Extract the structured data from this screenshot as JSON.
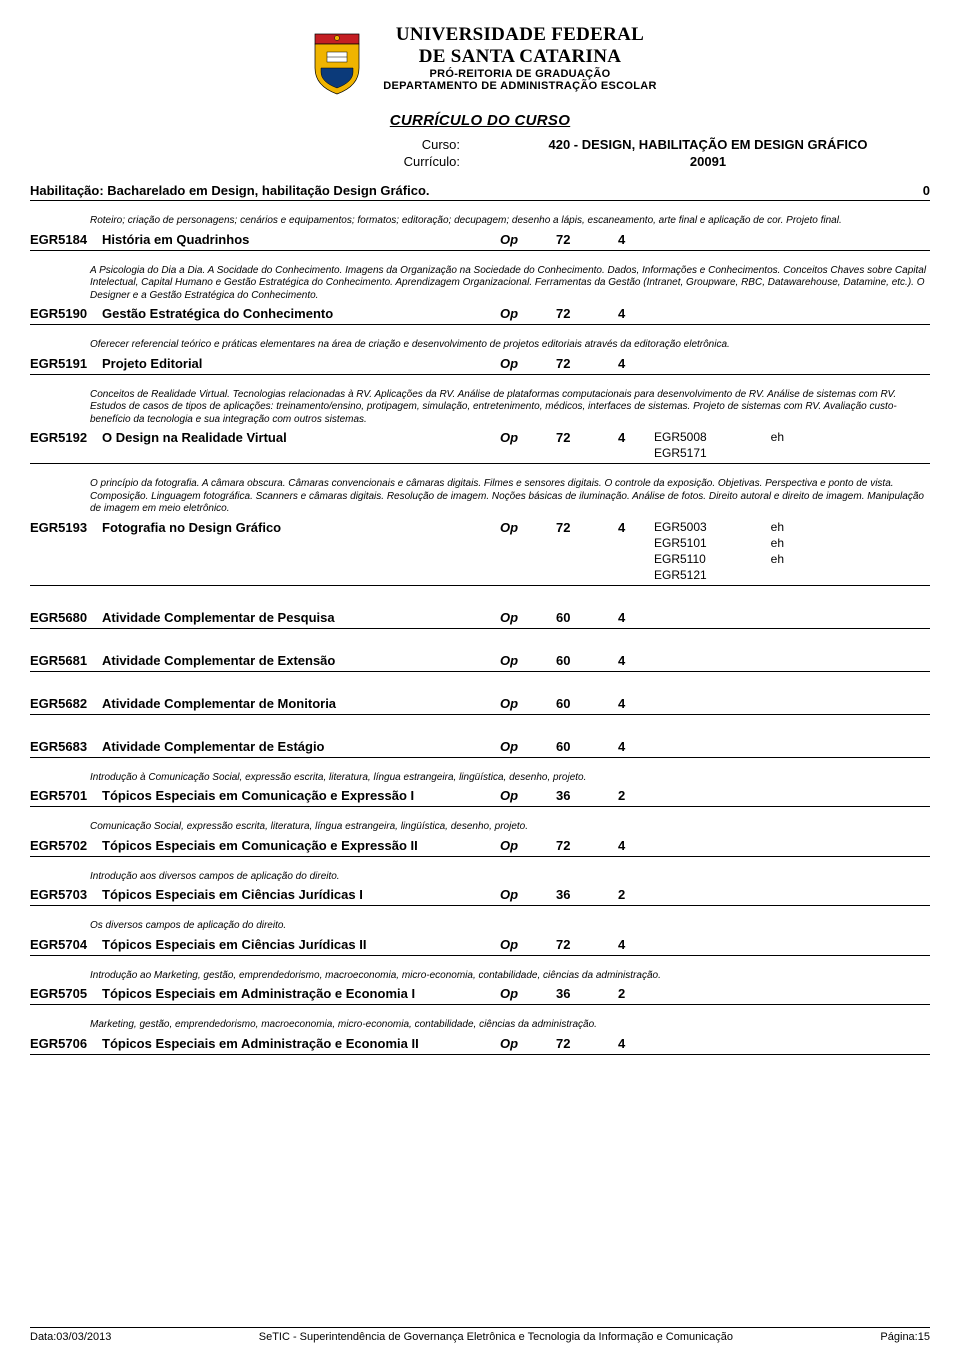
{
  "header": {
    "university_line1": "UNIVERSIDADE FEDERAL",
    "university_line2": "DE SANTA CATARINA",
    "sub1": "PRÓ-REITORIA DE GRADUAÇÃO",
    "sub2": "DEPARTAMENTO DE ADMINISTRAÇÃO ESCOLAR",
    "doc_title": "CURRÍCULO  DO  CURSO",
    "course_label": "Curso:",
    "course_value": "420 -  DESIGN, HABILITAÇÃO EM DESIGN GRÁFICO",
    "curriculum_label": "Currículo:",
    "curriculum_value": "20091",
    "hab_label": "Habilitação: Bacharelado em Design, habilitação Design Gráfico.",
    "hab_right": "0"
  },
  "entries": [
    {
      "desc": "Roteiro; criação de personagens; cenários e equipamentos; formatos; editoração; decupagem; desenho a lápis, escaneamento, arte final e aplicação de cor. Projeto final.",
      "code": "EGR5184",
      "name": "História em Quadrinhos",
      "type": "Op",
      "hours": "72",
      "cred": "4",
      "prereq": []
    },
    {
      "desc": "A Psicologia do Dia a Dia. A Socidade do Conhecimento. Imagens da Organização na Sociedade do Conhecimento. Dados, Informações e Conhecimentos. Conceitos Chaves sobre Capital Intelectual, Capital Humano e Gestão Estratégica do Conhecimento. Aprendizagem Organizacional. Ferramentas da Gestão (Intranet, Groupware, RBC, Datawarehouse, Datamine, etc.). O Designer e a Gestão Estratégica do Conhecimento.",
      "code": "EGR5190",
      "name": "Gestão Estratégica do Conhecimento",
      "type": "Op",
      "hours": "72",
      "cred": "4",
      "prereq": []
    },
    {
      "desc": "Oferecer referencial teórico e práticas elementares na área de criação e desenvolvimento de projetos editoriais através da editoração eletrônica.",
      "code": "EGR5191",
      "name": "Projeto Editorial",
      "type": "Op",
      "hours": "72",
      "cred": "4",
      "prereq": []
    },
    {
      "desc": "Conceitos de Realidade Virtual. Tecnologias relacionadas à RV. Aplicações da RV. Análise de plataformas computacionais para desenvolvimento de RV. Análise de sistemas com RV. Estudos de casos de tipos de aplicações: treinamento/ensino, protipagem, simulação, entretenimento, médicos, interfaces de sistemas. Projeto de sistemas com RV. Avaliação custo-benefício da tecnologia e sua integração com outros sistemas.",
      "code": "EGR5192",
      "name": "O Design na Realidade Virtual",
      "type": "Op",
      "hours": "72",
      "cred": "4",
      "prereq": [
        {
          "c": "EGR5008",
          "s": "eh"
        },
        {
          "c": "EGR5171",
          "s": ""
        }
      ]
    },
    {
      "desc": "O princípio da fotografia. A câmara obscura. Câmaras convencionais e câmaras digitais. Filmes e sensores digitais. O controle da exposição. Objetivas. Perspectiva e ponto de vista. Composição. Linguagem fotográfica. Scanners e câmaras digitais. Resolução de imagem. Noções básicas de iluminação. Análise de fotos. Direito autoral e direito de imagem. Manipulação de imagem em meio eletrônico.",
      "code": "EGR5193",
      "name": "Fotografia no Design Gráfico",
      "type": "Op",
      "hours": "72",
      "cred": "4",
      "prereq": [
        {
          "c": "EGR5003",
          "s": "eh"
        },
        {
          "c": "EGR5101",
          "s": "eh"
        },
        {
          "c": "EGR5110",
          "s": "eh"
        },
        {
          "c": "EGR5121",
          "s": ""
        }
      ]
    },
    {
      "desc": "",
      "code": "EGR5680",
      "name": "Atividade Complementar de Pesquisa",
      "type": "Op",
      "hours": "60",
      "cred": "4",
      "prereq": []
    },
    {
      "desc": "",
      "code": "EGR5681",
      "name": "Atividade Complementar de Extensão",
      "type": "Op",
      "hours": "60",
      "cred": "4",
      "prereq": []
    },
    {
      "desc": "",
      "code": "EGR5682",
      "name": "Atividade Complementar de Monitoria",
      "type": "Op",
      "hours": "60",
      "cred": "4",
      "prereq": []
    },
    {
      "desc": "",
      "code": "EGR5683",
      "name": "Atividade Complementar de Estágio",
      "type": "Op",
      "hours": "60",
      "cred": "4",
      "prereq": []
    },
    {
      "desc": "Introdução à Comunicação Social, expressão escrita, literatura, língua estrangeira, lingüística, desenho, projeto.",
      "code": "EGR5701",
      "name": "Tópicos Especiais em Comunicação e Expressão I",
      "type": "Op",
      "hours": "36",
      "cred": "2",
      "prereq": []
    },
    {
      "desc": "Comunicação Social, expressão escrita, literatura, língua estrangeira, lingüística, desenho, projeto.",
      "code": "EGR5702",
      "name": "Tópicos Especiais em Comunicação e Expressão II",
      "type": "Op",
      "hours": "72",
      "cred": "4",
      "prereq": []
    },
    {
      "desc": "Introdução aos diversos campos de aplicação do direito.",
      "code": "EGR5703",
      "name": "Tópicos Especiais em Ciências Jurídicas I",
      "type": "Op",
      "hours": "36",
      "cred": "2",
      "prereq": []
    },
    {
      "desc": "Os diversos campos de aplicação do direito.",
      "code": "EGR5704",
      "name": "Tópicos Especiais em Ciências Jurídicas II",
      "type": "Op",
      "hours": "72",
      "cred": "4",
      "prereq": []
    },
    {
      "desc": "Introdução ao Marketing, gestão, emprendedorismo, macroeconomia, micro-economia, contabilidade, ciências da administração.",
      "code": "EGR5705",
      "name": "Tópicos Especiais em Administração e Economia I",
      "type": "Op",
      "hours": "36",
      "cred": "2",
      "prereq": []
    },
    {
      "desc": "Marketing, gestão, emprendedorismo, macroeconomia, micro-economia, contabilidade, ciências da administração.",
      "code": "EGR5706",
      "name": "Tópicos Especiais em Administração e Economia II",
      "type": "Op",
      "hours": "72",
      "cred": "4",
      "prereq": []
    }
  ],
  "footer": {
    "date_label": "Data:",
    "date_value": "03/03/2013",
    "center": "SeTIC - Superintendência de Governança Eletrônica e Tecnologia da Informação e Comunicação",
    "page_label": "Página:",
    "page_value": "15"
  },
  "logo_colors": {
    "shield_top": "#c41e23",
    "shield_mid": "#f0b400",
    "shield_base": "#0b3a7a",
    "outline": "#000000"
  }
}
